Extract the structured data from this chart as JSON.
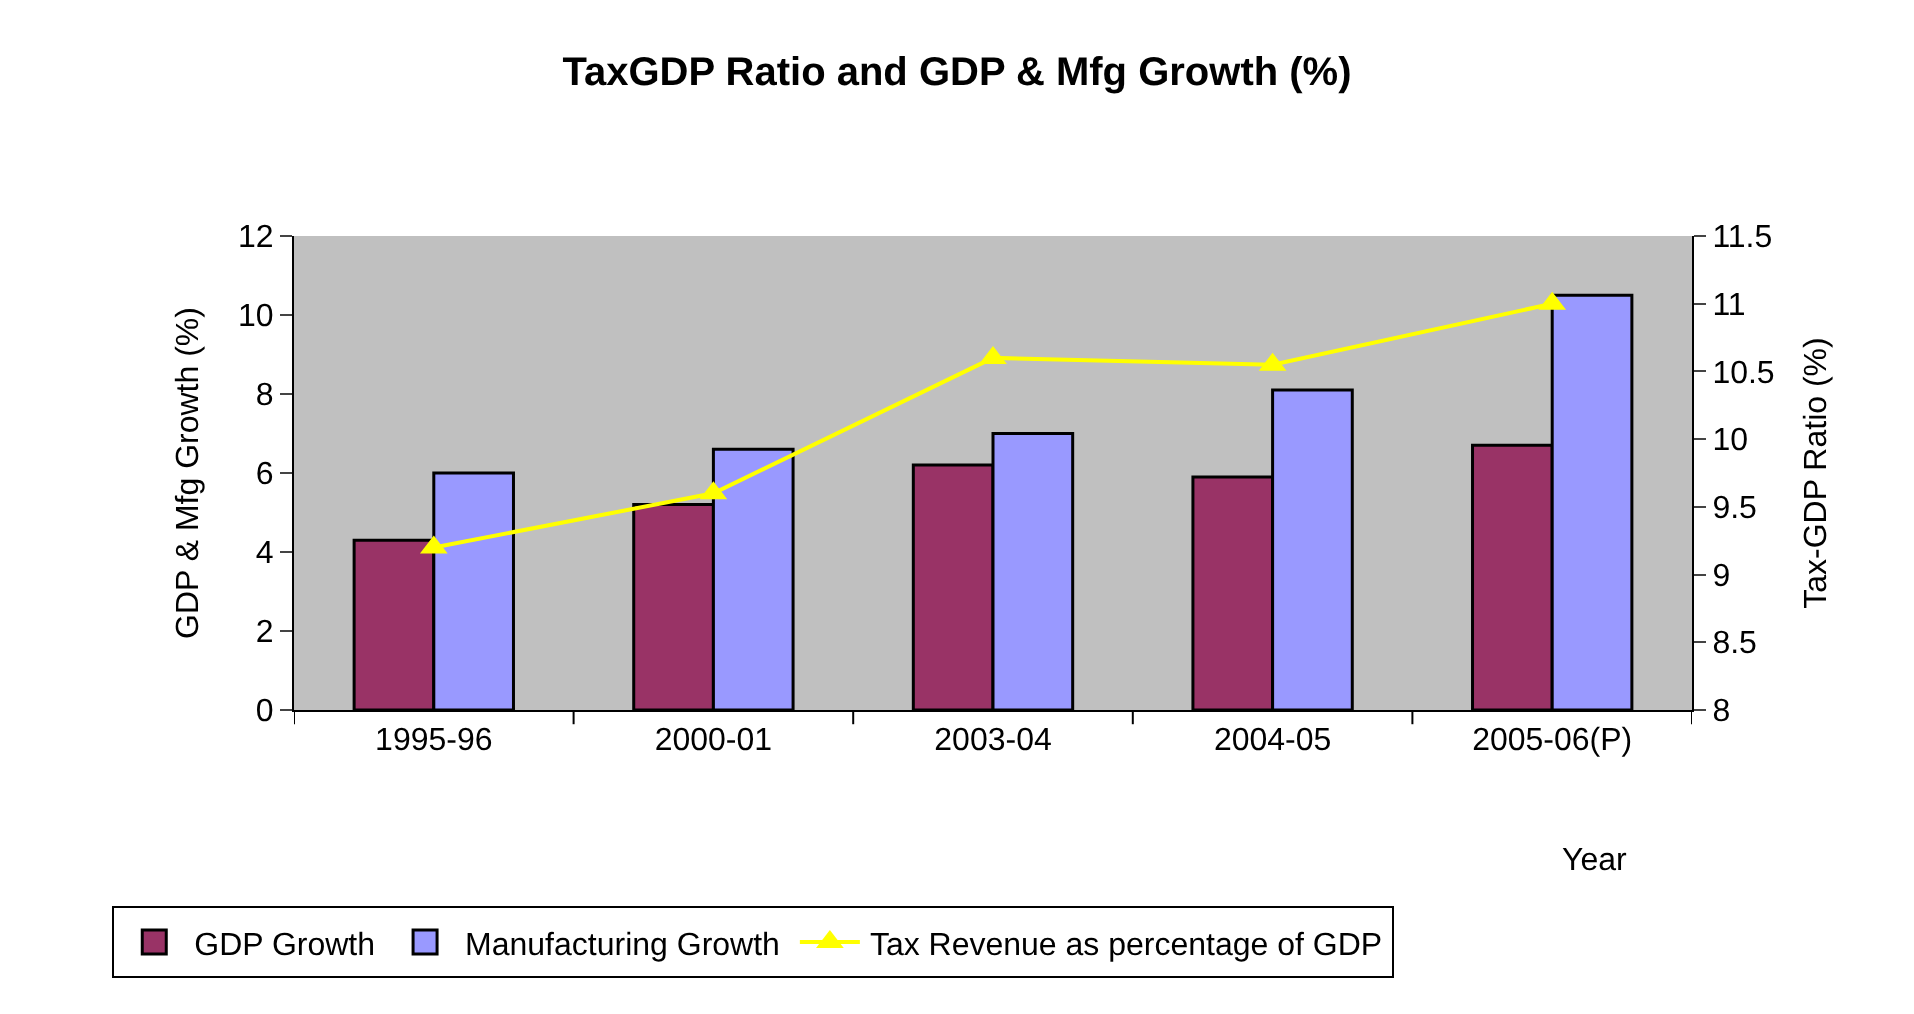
{
  "chart_data": {
    "type": "bar",
    "title": "TaxGDP Ratio and GDP & Mfg Growth (%)",
    "xlabel": "Year",
    "ylabel": "GDP & Mfg Growth (%)",
    "y2label": "Tax-GDP Ratio (%)",
    "categories": [
      "1995-96",
      "2000-01",
      "2003-04",
      "2004-05",
      "2005-06(P)"
    ],
    "series": [
      {
        "name": "GDP Growth",
        "color": "#993366",
        "values": [
          4.3,
          5.2,
          6.2,
          5.9,
          6.7
        ]
      },
      {
        "name": "Manufacturing Growth",
        "color": "#9999ff",
        "values": [
          6.0,
          6.6,
          7.0,
          8.1,
          10.5
        ]
      },
      {
        "name": "Tax Revenue as percentage of GDP",
        "type": "line",
        "axis": "y2",
        "color": "#ffff00",
        "marker": "triangle",
        "values": [
          9.2,
          9.6,
          10.6,
          10.55,
          11.0
        ]
      }
    ],
    "ylim": [
      0,
      12
    ],
    "yticks": [
      0,
      2,
      4,
      6,
      8,
      10,
      12
    ],
    "y2lim": [
      8,
      11.5
    ],
    "y2ticks": [
      8,
      8.5,
      9,
      9.5,
      10,
      10.5,
      11,
      11.5
    ],
    "grid": false,
    "legend": "bottom"
  }
}
